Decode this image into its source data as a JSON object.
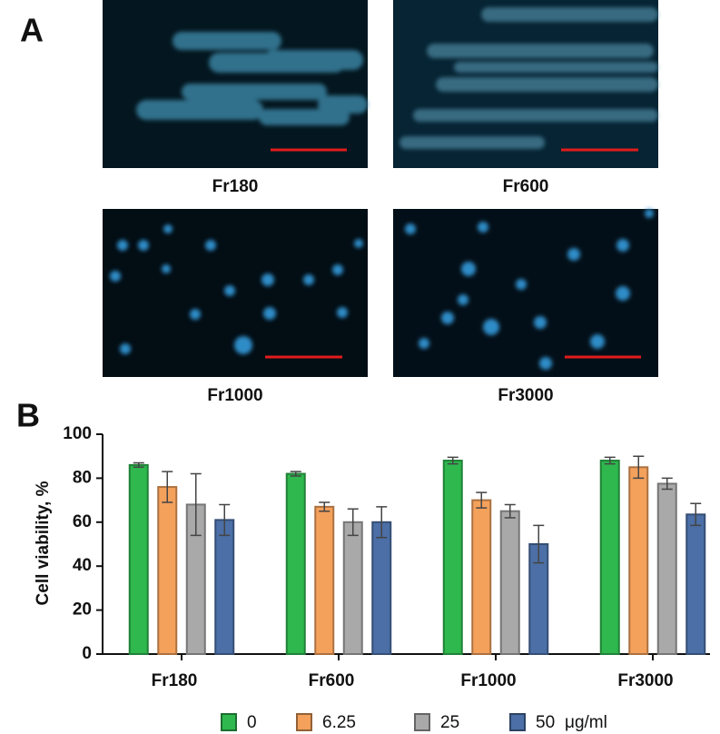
{
  "panel_labels": [
    "A",
    "B"
  ],
  "images": [
    {
      "label": "Fr180"
    },
    {
      "label": "Fr600"
    },
    {
      "label": "Fr1000"
    },
    {
      "label": "Fr3000"
    }
  ],
  "chart_data": {
    "type": "bar",
    "y_label": "Cell viability, %",
    "categories": [
      "Fr180",
      "Fr600",
      "Fr1000",
      "Fr3000"
    ],
    "series": [
      {
        "name": "0",
        "color": "#2eb84e",
        "values": [
          86,
          82,
          88,
          88
        ],
        "errors": [
          1,
          1,
          1.5,
          1.5
        ]
      },
      {
        "name": "6.25",
        "color": "#f4a15c",
        "values": [
          76,
          67,
          70,
          85
        ],
        "errors": [
          7,
          2,
          3.5,
          5
        ]
      },
      {
        "name": "25",
        "color": "#a9a9a9",
        "values": [
          68,
          60,
          65,
          77.5
        ],
        "errors": [
          14,
          6,
          3,
          2.5
        ]
      },
      {
        "name": "50",
        "color": "#4b6fa6",
        "values": [
          61,
          60,
          50,
          63.5
        ],
        "errors": [
          7,
          7,
          8.5,
          5
        ]
      }
    ],
    "legend_unit": "μg/ml",
    "ylim": [
      0,
      100
    ],
    "yticks": [
      0,
      20,
      40,
      60,
      80,
      100
    ]
  }
}
